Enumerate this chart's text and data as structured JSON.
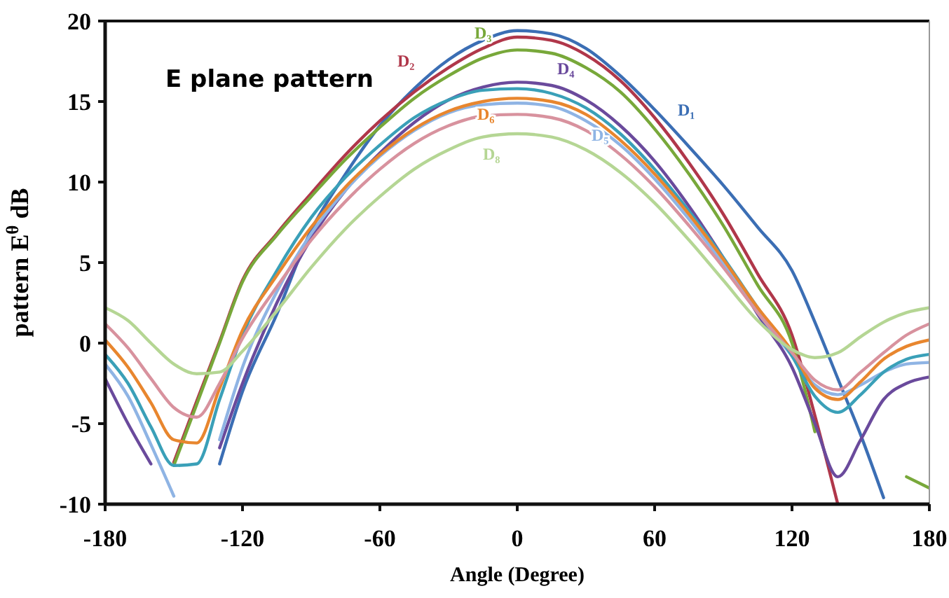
{
  "chart_data": {
    "type": "line",
    "title": "E plane pattern",
    "xlabel": "Angle (Degree)",
    "ylabel": "pattern E$^{θ}$ dB",
    "x": [
      -180,
      -170,
      -160,
      -150,
      -140,
      -130,
      -120,
      -105,
      -90,
      -75,
      -60,
      -45,
      -30,
      -15,
      0,
      15,
      30,
      45,
      60,
      75,
      90,
      105,
      120,
      130,
      140,
      150,
      160,
      170,
      180
    ],
    "xlim": [
      -180,
      180
    ],
    "xticks": [
      -180,
      -120,
      -60,
      0,
      60,
      120,
      180
    ],
    "ylim": [
      -10,
      20
    ],
    "yticks": [
      -10,
      -5,
      0,
      5,
      10,
      15,
      20
    ],
    "grid": false,
    "marker": "none",
    "line_style": "solid",
    "series": [
      {
        "name": "D₁",
        "color": "#3b6eb4",
        "values": [
          null,
          null,
          null,
          null,
          null,
          -7.5,
          -3,
          1.8,
          7,
          10.5,
          13.5,
          15.8,
          17.6,
          18.8,
          19.4,
          19.2,
          18.3,
          16.6,
          14.5,
          12.2,
          9.8,
          7.2,
          4.5,
          1.3,
          -2.2,
          -5.7,
          -9.6,
          null,
          null
        ]
      },
      {
        "name": "D₂",
        "color": "#b0374a",
        "values": [
          null,
          null,
          null,
          -7.4,
          -3.6,
          0.1,
          3.9,
          6.8,
          9.3,
          11.7,
          13.8,
          15.6,
          17.1,
          18.3,
          19,
          18.8,
          17.9,
          16.3,
          14,
          11.2,
          8,
          4.3,
          0.5,
          -4.5,
          -10,
          null,
          null,
          null,
          null
        ]
      },
      {
        "name": "D₃",
        "color": "#78a83a",
        "values": [
          null,
          null,
          null,
          -7.6,
          -3.8,
          0,
          3.8,
          6.7,
          9.1,
          11.4,
          13.4,
          15.2,
          16.6,
          17.7,
          18.2,
          18,
          17.1,
          15.6,
          13.3,
          10.5,
          7.3,
          3.6,
          0,
          -5.5,
          null,
          null,
          null,
          -8.3,
          -9
        ]
      },
      {
        "name": "D₄",
        "color": "#6a4a9c",
        "values": [
          -2.2,
          -5,
          -7.5,
          null,
          null,
          -6.5,
          -2.5,
          2.5,
          6.5,
          9.5,
          11.8,
          13.7,
          15.1,
          15.9,
          16.2,
          16,
          15.1,
          13.5,
          11.3,
          8.5,
          5.3,
          1.8,
          -1.5,
          -5,
          -8.3,
          -6,
          -3.5,
          -2.5,
          -2.1
        ]
      },
      {
        "name": "D₅",
        "color": "#8fb4e4",
        "values": [
          -1.3,
          -3.3,
          -6.3,
          -9.5,
          null,
          -6,
          -1.5,
          3.2,
          6.8,
          9.5,
          11.6,
          13.2,
          14.3,
          14.8,
          14.9,
          14.7,
          13.8,
          12.3,
          10.2,
          7.7,
          4.9,
          1.9,
          -0.8,
          -2.6,
          -3.2,
          -2.6,
          -1.8,
          -1.3,
          -1.2
        ]
      },
      {
        "color": "#3aa0b8",
        "values": [
          -0.7,
          -2.5,
          -5.2,
          -7.6,
          -7.5,
          -3.5,
          0.5,
          4.5,
          7.8,
          10.3,
          12.3,
          14,
          15.1,
          15.7,
          15.8,
          15.5,
          14.6,
          13,
          10.8,
          8.2,
          5.3,
          2.2,
          -0.8,
          -3.3,
          -4.3,
          -3.2,
          -1.8,
          -1,
          -0.7
        ]
      },
      {
        "name": "D₆",
        "color": "#e8862e",
        "values": [
          0.2,
          -1.5,
          -3.7,
          -6,
          -6.2,
          -2.8,
          0.8,
          4.2,
          7.2,
          9.7,
          11.7,
          13.3,
          14.4,
          15,
          15.2,
          15,
          14.2,
          12.6,
          10.5,
          8,
          5.2,
          2.2,
          -0.5,
          -2.8,
          -3.5,
          -2.4,
          -1,
          -0.2,
          0.2
        ]
      },
      {
        "color": "#d8929e",
        "values": [
          1.2,
          -0.3,
          -2.2,
          -4,
          -4.6,
          -2.5,
          0.3,
          3.5,
          6.4,
          8.8,
          10.8,
          12.4,
          13.5,
          14.1,
          14.2,
          14,
          13.2,
          11.7,
          9.7,
          7.3,
          4.7,
          1.9,
          -0.6,
          -2.3,
          -2.9,
          -1.8,
          -0.6,
          0.5,
          1.2
        ]
      },
      {
        "name": "D₈",
        "color": "#b5d694",
        "values": [
          2.2,
          1.4,
          0,
          -1.3,
          -1.9,
          -1.8,
          -0.5,
          2,
          4.7,
          7.1,
          9.1,
          10.8,
          12,
          12.8,
          13,
          12.8,
          12,
          10.6,
          8.7,
          6.4,
          3.9,
          1.4,
          -0.4,
          -0.9,
          -0.6,
          0.4,
          1.3,
          1.9,
          2.2
        ]
      }
    ]
  }
}
